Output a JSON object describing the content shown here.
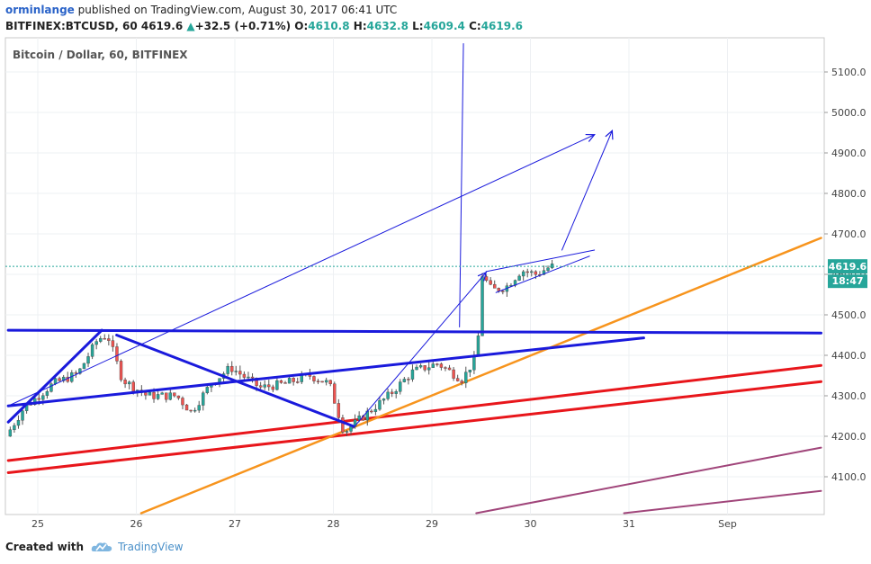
{
  "header": {
    "author": "orminlange",
    "published_text": "published on TradingView.com, August 30, 2017 06:41 UTC",
    "symbol_line": "BITFINEX:BTCUSD, 60",
    "last": "4619.6",
    "change": "+32.5 (+0.71%)",
    "open_label": "O:",
    "open": "4610.8",
    "high_label": "H:",
    "high": "4632.8",
    "low_label": "L:",
    "low": "4609.4",
    "close_label": "C:",
    "close": "4619.6"
  },
  "chart_data": {
    "type": "candlestick",
    "title": "Bitcoin / Dollar, 60, BITFINEX",
    "x_tick_labels": [
      "25",
      "26",
      "27",
      "28",
      "29",
      "30",
      "31",
      "Sep"
    ],
    "y_tick_labels": [
      "4100.0",
      "4200.0",
      "4300.0",
      "4400.0",
      "4500.0",
      "4600.0",
      "4700.0",
      "4800.0",
      "4900.0",
      "5000.0",
      "5100.0"
    ],
    "ylim": [
      4010,
      5160
    ],
    "x_range_days": [
      24.7,
      32.95
    ],
    "last_price": 4619.6,
    "last_price_label": "4619.6",
    "countdown_label": "18:47",
    "colors": {
      "up": "#26a69a",
      "down": "#ef5350",
      "blue": "#1a1adc",
      "orange": "#f7941d",
      "red": "#e8161b",
      "purple": "#a0457a"
    },
    "anchors": [
      [
        24.72,
        4200
      ],
      [
        24.9,
        4270
      ],
      [
        25.2,
        4330
      ],
      [
        25.45,
        4355
      ],
      [
        25.65,
        4440
      ],
      [
        25.75,
        4450
      ],
      [
        25.9,
        4340
      ],
      [
        26.15,
        4300
      ],
      [
        26.45,
        4300
      ],
      [
        26.6,
        4260
      ],
      [
        26.8,
        4330
      ],
      [
        27.0,
        4370
      ],
      [
        27.3,
        4320
      ],
      [
        27.55,
        4330
      ],
      [
        27.8,
        4350
      ],
      [
        28.0,
        4330
      ],
      [
        28.15,
        4210
      ],
      [
        28.35,
        4250
      ],
      [
        28.6,
        4300
      ],
      [
        28.85,
        4360
      ],
      [
        29.1,
        4380
      ],
      [
        29.35,
        4340
      ],
      [
        29.5,
        4400
      ],
      [
        29.55,
        4600
      ],
      [
        29.65,
        4560
      ],
      [
        29.8,
        4570
      ],
      [
        29.95,
        4610
      ],
      [
        30.1,
        4600
      ],
      [
        30.25,
        4620
      ]
    ],
    "drawings": {
      "blue_thick": [
        [
          [
            24.7,
            4462
          ],
          [
            32.95,
            4455
          ]
        ],
        [
          [
            24.7,
            4275
          ],
          [
            31.15,
            4443
          ]
        ],
        [
          [
            24.7,
            4235
          ],
          [
            25.65,
            4462
          ]
        ],
        [
          [
            25.8,
            4450
          ],
          [
            28.2,
            4225
          ]
        ]
      ],
      "blue_thin": [
        [
          [
            24.7,
            4275
          ],
          [
            30.65,
            4945
          ]
        ],
        [
          [
            28.2,
            4220
          ],
          [
            29.55,
            4605
          ]
        ],
        [
          [
            29.28,
            4470
          ],
          [
            29.32,
            5170
          ]
        ],
        [
          [
            29.55,
            4607
          ],
          [
            30.65,
            4660
          ]
        ],
        [
          [
            29.65,
            4555
          ],
          [
            30.6,
            4645
          ]
        ],
        [
          [
            30.32,
            4660
          ],
          [
            30.83,
            4955
          ]
        ]
      ],
      "orange": [
        [
          [
            26.05,
            4010
          ],
          [
            32.95,
            4690
          ]
        ]
      ],
      "red": [
        [
          [
            24.7,
            4140
          ],
          [
            32.95,
            4375
          ]
        ],
        [
          [
            24.7,
            4110
          ],
          [
            32.95,
            4335
          ]
        ]
      ],
      "purple": [
        [
          [
            29.45,
            4010
          ],
          [
            32.95,
            4172
          ]
        ],
        [
          [
            30.95,
            4010
          ],
          [
            32.95,
            4065
          ]
        ]
      ]
    }
  },
  "footer": {
    "created_with": "Created with",
    "brand": "TradingView"
  }
}
